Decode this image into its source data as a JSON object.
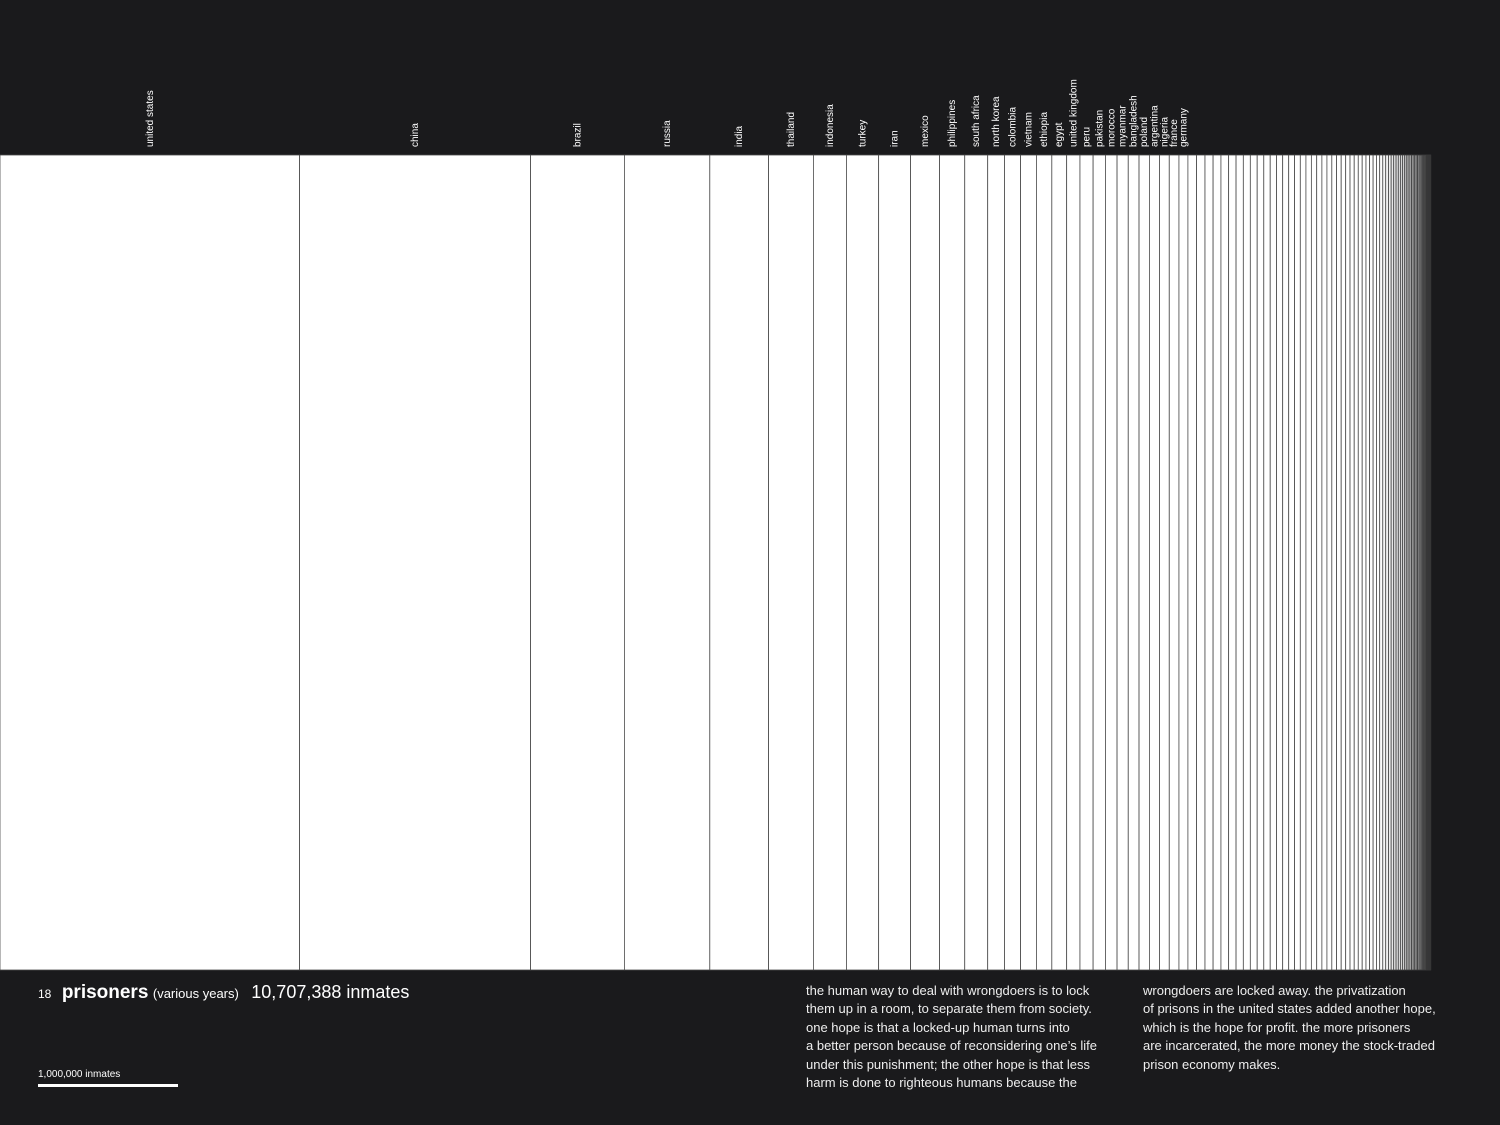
{
  "chart_data": {
    "type": "partition",
    "page_number": "18",
    "title": "prisoners",
    "subtitle": "(various years)",
    "total_label": "10,707,388 inmates",
    "scale": {
      "value": 1000000,
      "label": "1,000,000 inmates"
    },
    "color": "#ffffff",
    "categories": [
      "united states",
      "china",
      "brazil",
      "russia",
      "india",
      "thailand",
      "indonesia",
      "turkey",
      "iran",
      "mexico",
      "philippines",
      "south africa",
      "north korea",
      "colombia",
      "vietnam",
      "ethiopia",
      "egypt",
      "united kingdom",
      "peru",
      "pakistan",
      "morocco",
      "myanmar",
      "bangladesh",
      "poland",
      "argentina",
      "nigeria",
      "france",
      "germany",
      null,
      null,
      null,
      null,
      null,
      null,
      null,
      null,
      null,
      null,
      null,
      null,
      null,
      null,
      null,
      null,
      null,
      null,
      null,
      null,
      null,
      null,
      null,
      null,
      null,
      null,
      null,
      null,
      null,
      null,
      null,
      null,
      null,
      null,
      null,
      null,
      null,
      null,
      null,
      null,
      null,
      null,
      null,
      null,
      null,
      null,
      null,
      null,
      null,
      null,
      null,
      null,
      null,
      null,
      null,
      null,
      null,
      null,
      null,
      null,
      null,
      null,
      null,
      null,
      null,
      null,
      null,
      null,
      null,
      null
    ],
    "values": [
      2140000,
      1650000,
      670000,
      610000,
      420000,
      320000,
      236000,
      230000,
      228000,
      207000,
      180000,
      164000,
      120000,
      115000,
      113000,
      110000,
      106000,
      95000,
      94000,
      88000,
      83000,
      80000,
      77000,
      74000,
      72000,
      70000,
      69000,
      64000,
      62000,
      60000,
      58000,
      56000,
      55000,
      53000,
      52000,
      50000,
      49000,
      47000,
      46000,
      45000,
      44000,
      43000,
      42000,
      41000,
      40000,
      39000,
      38000,
      37000,
      36000,
      35000,
      34000,
      33000,
      32000,
      31000,
      30000,
      29000,
      28000,
      27000,
      26000,
      25000,
      24000,
      23000,
      22000,
      21000,
      20000,
      19000,
      18000,
      17000,
      16000,
      15000,
      14500,
      14000,
      13500,
      13000,
      12500,
      12000,
      11500,
      11000,
      10500,
      10000,
      9500,
      9000,
      8500,
      8000,
      7500,
      7000,
      6500,
      6000,
      5500,
      5000,
      4500,
      4000,
      3500,
      3000,
      2500,
      2000,
      1500,
      1000
    ],
    "text_column_1": [
      "the human way to deal with wrongdoers is to lock",
      "them up in a room, to separate them from society.",
      "one hope is that a locked-up human turns into",
      "a better person because of reconsidering one’s life",
      "under this punishment; the other hope is that less",
      "harm is done to righteous humans because the"
    ],
    "text_column_2": [
      "wrongdoers are locked away. the privatization",
      "of prisons in the united states added another hope,",
      "which is the hope for profit. the more prisoners",
      "are incarcerated, the more money the stock-traded",
      "prison economy makes."
    ]
  }
}
